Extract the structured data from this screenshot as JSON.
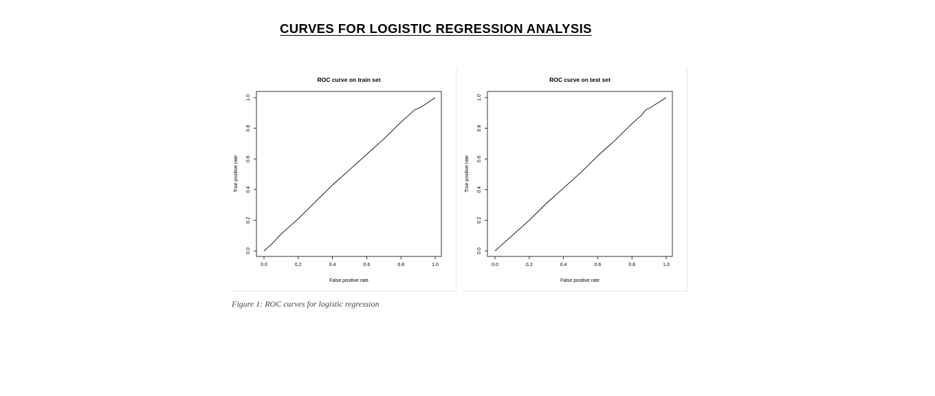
{
  "heading": "CURVES FOR LOGISTIC REGRESSION ANALYSIS",
  "caption": "Figure 1: ROC curves for logistic regression",
  "chart_data": [
    {
      "type": "line",
      "title": "ROC curve on train set",
      "xlabel": "False positive rate",
      "ylabel": "True positive rate",
      "xlim": [
        0,
        1
      ],
      "ylim": [
        0,
        1
      ],
      "xticks": [
        "0.0",
        "0.2",
        "0.4",
        "0.6",
        "0.8",
        "1.0"
      ],
      "yticks": [
        "0.0",
        "0.2",
        "0.4",
        "0.6",
        "0.8",
        "1.0"
      ],
      "grid": false,
      "color": "#000000",
      "series": [
        {
          "x": [
            0,
            0.02,
            0.05,
            0.1,
            0.2,
            0.3,
            0.4,
            0.5,
            0.6,
            0.7,
            0.8,
            0.85,
            0.88,
            0.92,
            1.0
          ],
          "y": [
            0,
            0.02,
            0.05,
            0.11,
            0.21,
            0.32,
            0.43,
            0.53,
            0.63,
            0.73,
            0.84,
            0.89,
            0.92,
            0.94,
            1.0
          ]
        }
      ]
    },
    {
      "type": "line",
      "title": "ROC curve on test set",
      "xlabel": "False positive rate",
      "ylabel": "True positive rate",
      "xlim": [
        0,
        1
      ],
      "ylim": [
        0,
        1
      ],
      "xticks": [
        "0.0",
        "0.2",
        "0.4",
        "0.6",
        "0.8",
        "1.0"
      ],
      "yticks": [
        "0.0",
        "0.2",
        "0.4",
        "0.6",
        "0.8",
        "1.0"
      ],
      "grid": false,
      "color": "#000000",
      "series": [
        {
          "x": [
            0,
            0.02,
            0.05,
            0.1,
            0.2,
            0.3,
            0.4,
            0.5,
            0.6,
            0.7,
            0.8,
            0.86,
            0.88,
            0.9,
            1.0
          ],
          "y": [
            0,
            0.02,
            0.05,
            0.1,
            0.2,
            0.31,
            0.41,
            0.51,
            0.62,
            0.72,
            0.83,
            0.89,
            0.92,
            0.93,
            1.0
          ]
        }
      ]
    }
  ]
}
